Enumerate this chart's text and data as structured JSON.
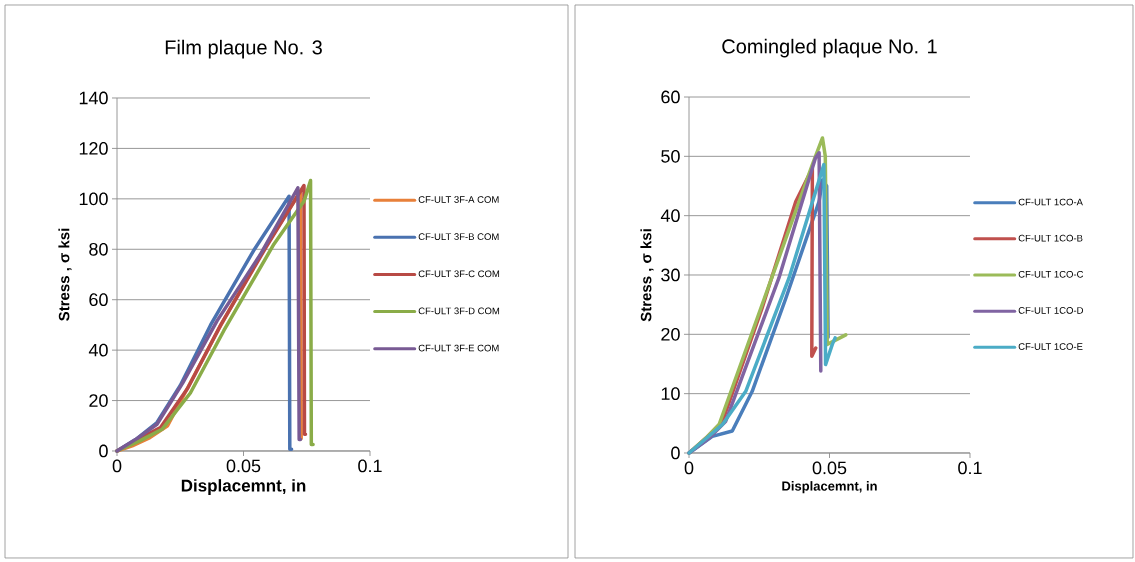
{
  "chart_data": [
    {
      "type": "line",
      "title": "Film plaque No. 3",
      "xlabel": "Displacemnt, in",
      "ylabel": "Stress , σ ksi",
      "xlim": [
        0,
        0.1
      ],
      "xticks": [
        0,
        0.05,
        0.1
      ],
      "ylim": [
        0,
        140
      ],
      "yticks": [
        0,
        20,
        40,
        60,
        80,
        100,
        120,
        140
      ],
      "grid": "y",
      "legend": "right",
      "line_style": "solid",
      "series": [
        {
          "name": "CF-ULT 3F-A COM",
          "color": "#e8803a",
          "x": [
            0,
            0.006,
            0.013,
            0.02,
            0.04,
            0.058,
            0.0725,
            0.0728
          ],
          "values": [
            0,
            2,
            5.3,
            10,
            48,
            80,
            103,
            5
          ]
        },
        {
          "name": "CF-ULT 3F-B COM",
          "color": "#4a72b0",
          "x": [
            0,
            0.008,
            0.0158,
            0.025,
            0.037,
            0.054,
            0.068,
            0.0683,
            0.069
          ],
          "values": [
            0,
            5,
            11.3,
            26,
            50,
            79.5,
            101,
            0.7,
            0.7
          ]
        },
        {
          "name": "CF-ULT 3F-C COM",
          "color": "#b84a45",
          "x": [
            0,
            0.008,
            0.0172,
            0.028,
            0.041,
            0.059,
            0.0739,
            0.0741,
            0.0745
          ],
          "values": [
            0,
            4.5,
            9.3,
            25,
            50,
            81,
            105.3,
            6.6,
            6.6
          ]
        },
        {
          "name": "CF-ULT 3F-D COM",
          "color": "#8aac48",
          "x": [
            0,
            0.009,
            0.0178,
            0.029,
            0.0422,
            0.062,
            0.0739,
            0.0765,
            0.0768,
            0.0775
          ],
          "values": [
            0,
            4,
            8.6,
            23,
            47.7,
            82,
            99,
            107.3,
            2.6,
            2.6
          ]
        },
        {
          "name": "CF-ULT 3F-E COM",
          "color": "#785a94",
          "x": [
            0,
            0.008,
            0.0158,
            0.026,
            0.0396,
            0.0567,
            0.0715,
            0.072,
            0.0725
          ],
          "values": [
            0,
            5,
            10.6,
            27,
            51.7,
            78,
            104.4,
            4.6,
            4.6
          ]
        }
      ]
    },
    {
      "type": "line",
      "title": "Comingled plaque No. 1",
      "xlabel": "Displacemnt, in",
      "ylabel": "Stress , σ ksi",
      "xlim": [
        0,
        0.1
      ],
      "xticks": [
        0,
        0.05,
        0.1
      ],
      "ylim": [
        0,
        60
      ],
      "yticks": [
        0,
        10,
        20,
        30,
        40,
        50,
        60
      ],
      "grid": "y",
      "legend": "right",
      "line_style": "solid",
      "series": [
        {
          "name": "CF-ULT 1CO-A",
          "color": "#4a7ebb",
          "x": [
            0,
            0.0083,
            0.0154,
            0.0225,
            0.0344,
            0.0463,
            0.0475,
            0.049,
            0.0495
          ],
          "values": [
            0,
            2.8,
            3.7,
            10.4,
            26,
            42.4,
            46,
            45,
            19.5
          ]
        },
        {
          "name": "CF-ULT 1CO-B",
          "color": "#c0504d",
          "x": [
            0,
            0.006,
            0.0119,
            0.026,
            0.038,
            0.0439,
            0.0437,
            0.0451
          ],
          "values": [
            0,
            2.5,
            5.3,
            24.4,
            42.4,
            48,
            16.3,
            17.7
          ]
        },
        {
          "name": "CF-ULT 1CO-C",
          "color": "#9bbb59",
          "x": [
            0,
            0.006,
            0.0107,
            0.032,
            0.0439,
            0.0475,
            0.0485,
            0.0492,
            0.0558
          ],
          "values": [
            0,
            2.5,
            4.8,
            32.9,
            48.6,
            53.1,
            50,
            18.3,
            19.9
          ]
        },
        {
          "name": "CF-ULT 1CO-D",
          "color": "#8064a2",
          "x": [
            0,
            0.0071,
            0.013,
            0.032,
            0.045,
            0.0463,
            0.0469
          ],
          "values": [
            0,
            2.5,
            5.3,
            29.5,
            49.7,
            50.6,
            13.8
          ]
        },
        {
          "name": "CF-ULT 1CO-E",
          "color": "#4bacc6",
          "x": [
            0,
            0.006,
            0.0119,
            0.0202,
            0.0356,
            0.048,
            0.0486,
            0.051,
            0.052
          ],
          "values": [
            0,
            2.4,
            4.8,
            10.4,
            29.5,
            48.6,
            14.9,
            18.3,
            19.4
          ]
        }
      ]
    }
  ]
}
